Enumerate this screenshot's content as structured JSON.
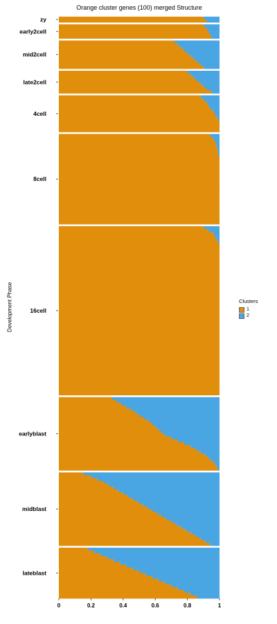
{
  "chart_data": {
    "type": "structure-barplot",
    "title": "Orange cluster genes (100) merged Structure",
    "ylabel": "Development Phase",
    "xlabel": "",
    "xlim": [
      0,
      1
    ],
    "x_ticks": [
      "0",
      "0.2",
      "0.4",
      "0.6",
      "0.8",
      "1"
    ],
    "legend": {
      "title": "Clusters",
      "placement": "right",
      "items": [
        {
          "label": "1",
          "color": "#E08E0B"
        },
        {
          "label": "2",
          "color": "#4AA5E3"
        }
      ]
    },
    "series": [
      {
        "name": "1",
        "color": "#E08E0B"
      },
      {
        "name": "2",
        "color": "#4AA5E3"
      }
    ],
    "groups": [
      {
        "label": "zy",
        "cluster1": [
          0.9,
          0.92
        ]
      },
      {
        "label": "early2cell",
        "cluster1": [
          0.9,
          0.92,
          0.93,
          0.94,
          0.95
        ]
      },
      {
        "label": "mid2cell",
        "cluster1": [
          0.72,
          0.74,
          0.76,
          0.78,
          0.8,
          0.82,
          0.84,
          0.86,
          0.88,
          0.9
        ]
      },
      {
        "label": "late2cell",
        "cluster1": [
          0.8,
          0.82,
          0.84,
          0.86,
          0.88,
          0.9,
          0.92,
          0.95
        ]
      },
      {
        "label": "4cell",
        "cluster1": [
          0.88,
          0.9,
          0.92,
          0.93,
          0.94,
          0.96,
          0.97,
          0.98,
          0.99,
          1.0,
          1.0,
          1.0,
          1.0
        ]
      },
      {
        "label": "8cell",
        "cluster1": [
          0.94,
          0.96,
          0.97,
          0.98,
          0.98,
          0.99,
          0.99,
          0.99,
          1.0,
          1.0,
          1.0,
          1.0,
          1.0,
          1.0,
          1.0,
          1.0,
          1.0,
          1.0,
          1.0,
          1.0,
          1.0,
          1.0,
          1.0,
          1.0,
          1.0,
          1.0,
          1.0,
          1.0,
          1.0,
          1.0,
          1.0,
          1.0
        ]
      },
      {
        "label": "16cell",
        "cluster1": [
          0.9,
          0.93,
          0.96,
          0.97,
          0.98,
          0.99,
          1.0,
          1.0,
          1.0,
          1.0,
          1.0,
          1.0,
          1.0,
          1.0,
          1.0,
          1.0,
          1.0,
          1.0,
          1.0,
          1.0,
          1.0,
          1.0,
          1.0,
          1.0,
          1.0,
          1.0,
          1.0,
          1.0,
          1.0,
          1.0,
          1.0,
          1.0,
          1.0,
          1.0,
          1.0,
          1.0,
          1.0,
          1.0,
          1.0,
          1.0,
          1.0,
          1.0,
          1.0,
          1.0,
          1.0,
          1.0,
          1.0,
          1.0,
          1.0,
          1.0,
          1.0,
          1.0,
          1.0,
          1.0,
          1.0,
          1.0,
          1.0,
          1.0,
          1.0,
          1.0
        ]
      },
      {
        "label": "earlyblast",
        "cluster1": [
          0.33,
          0.36,
          0.39,
          0.42,
          0.45,
          0.48,
          0.5,
          0.53,
          0.56,
          0.58,
          0.6,
          0.62,
          0.64,
          0.66,
          0.7,
          0.74,
          0.78,
          0.82,
          0.85,
          0.88,
          0.91,
          0.93,
          0.95,
          0.97,
          0.98,
          0.99
        ]
      },
      {
        "label": "midblast",
        "cluster1": [
          0.15,
          0.2,
          0.24,
          0.28,
          0.31,
          0.34,
          0.37,
          0.4,
          0.43,
          0.46,
          0.49,
          0.52,
          0.55,
          0.58,
          0.61,
          0.64,
          0.67,
          0.7,
          0.73,
          0.76,
          0.79,
          0.82,
          0.85,
          0.88,
          0.91,
          0.94
        ]
      },
      {
        "label": "lateblast",
        "cluster1": [
          0.18,
          0.22,
          0.26,
          0.3,
          0.34,
          0.38,
          0.42,
          0.46,
          0.5,
          0.54,
          0.58,
          0.62,
          0.66,
          0.7,
          0.74,
          0.78,
          0.82,
          0.86
        ]
      }
    ],
    "grid": false
  }
}
